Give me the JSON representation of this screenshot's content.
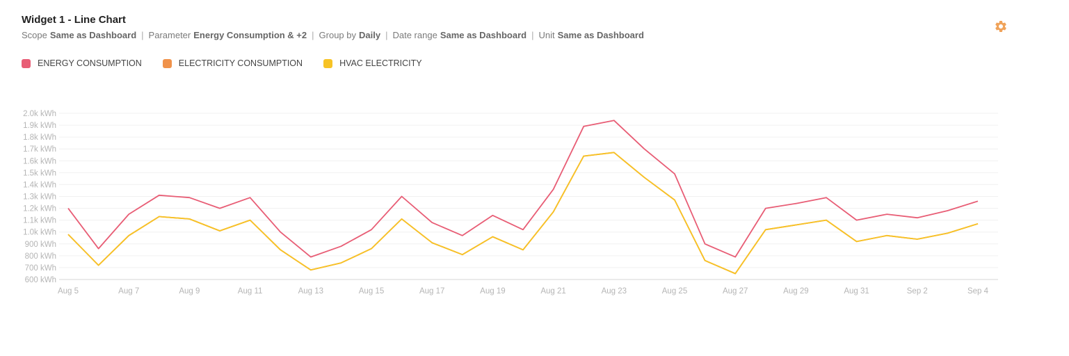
{
  "widget": {
    "title": "Widget 1 - Line Chart",
    "meta": [
      {
        "key": "Scope",
        "value": "Same as Dashboard"
      },
      {
        "key": "Parameter",
        "value": "Energy Consumption & +2"
      },
      {
        "key": "Group by",
        "value": "Daily"
      },
      {
        "key": "Date range",
        "value": "Same as Dashboard"
      },
      {
        "key": "Unit",
        "value": "Same as Dashboard"
      }
    ],
    "settings_icon": "gear-icon",
    "accent_color": "#f0a35a"
  },
  "legend": [
    {
      "label": "ENERGY CONSUMPTION",
      "color": "#e85d75"
    },
    {
      "label": "ELECTRICITY CONSUMPTION",
      "color": "#f0924a"
    },
    {
      "label": "HVAC ELECTRICITY",
      "color": "#f7c325"
    }
  ],
  "chart_data": {
    "type": "line",
    "x": [
      "Aug 5",
      "Aug 6",
      "Aug 7",
      "Aug 8",
      "Aug 9",
      "Aug 10",
      "Aug 11",
      "Aug 12",
      "Aug 13",
      "Aug 14",
      "Aug 15",
      "Aug 16",
      "Aug 17",
      "Aug 18",
      "Aug 19",
      "Aug 20",
      "Aug 21",
      "Aug 22",
      "Aug 23",
      "Aug 24",
      "Aug 25",
      "Aug 26",
      "Aug 27",
      "Aug 28",
      "Aug 29",
      "Aug 30",
      "Aug 31",
      "Sep 1",
      "Sep 2",
      "Sep 3",
      "Sep 4"
    ],
    "x_tick_labels": [
      "Aug 5",
      "Aug 7",
      "Aug 9",
      "Aug 11",
      "Aug 13",
      "Aug 15",
      "Aug 17",
      "Aug 19",
      "Aug 21",
      "Aug 23",
      "Aug 25",
      "Aug 27",
      "Aug 29",
      "Aug 31",
      "Sep 2",
      "Sep 4"
    ],
    "y_tick_labels": [
      "600 kWh",
      "700 kWh",
      "800 kWh",
      "900 kWh",
      "1.0k kWh",
      "1.1k kWh",
      "1.2k kWh",
      "1.3k kWh",
      "1.4k kWh",
      "1.5k kWh",
      "1.6k kWh",
      "1.7k kWh",
      "1.8k kWh",
      "1.9k kWh",
      "2.0k kWh"
    ],
    "y_ticks": [
      600,
      700,
      800,
      900,
      1000,
      1100,
      1200,
      1300,
      1400,
      1500,
      1600,
      1700,
      1800,
      1900,
      2000
    ],
    "ylim": [
      600,
      2000
    ],
    "grid": true,
    "series": [
      {
        "name": "ENERGY CONSUMPTION",
        "color": "#e85d75",
        "values": [
          1200,
          860,
          1150,
          1310,
          1290,
          1200,
          1290,
          1000,
          790,
          880,
          1020,
          1300,
          1080,
          970,
          1140,
          1020,
          1360,
          1890,
          1940,
          1700,
          1490,
          900,
          790,
          1200,
          1240,
          1290,
          1100,
          1150,
          1120,
          1180,
          1260
        ]
      },
      {
        "name": "ELECTRICITY CONSUMPTION",
        "color": "#f0924a",
        "values": [
          980,
          720,
          970,
          1130,
          1110,
          1010,
          1100,
          850,
          680,
          740,
          860,
          1110,
          910,
          810,
          960,
          850,
          1170,
          1640,
          1670,
          1460,
          1270,
          760,
          650,
          1020,
          1060,
          1100,
          920,
          970,
          940,
          990,
          1070
        ]
      },
      {
        "name": "HVAC ELECTRICITY",
        "color": "#f7c325",
        "values": [
          980,
          720,
          970,
          1130,
          1110,
          1010,
          1100,
          850,
          680,
          740,
          860,
          1110,
          910,
          810,
          960,
          850,
          1170,
          1640,
          1670,
          1460,
          1270,
          760,
          650,
          1020,
          1060,
          1100,
          920,
          970,
          940,
          990,
          1070
        ]
      }
    ]
  }
}
